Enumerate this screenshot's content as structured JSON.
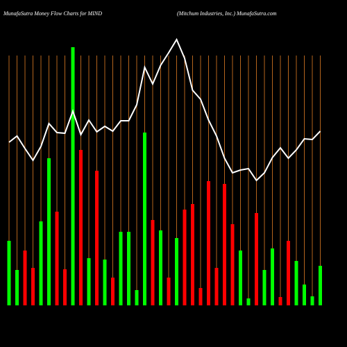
{
  "chart_data": {
    "type": "bar",
    "title": "MunafaSutra  Money Flow  Charts for MIND",
    "subtitle": "(Mitchum Industries, Inc.) MunafaSutra.com",
    "categories": [
      null,
      null,
      null,
      null,
      null,
      null,
      null,
      null,
      null,
      null,
      null,
      null,
      null,
      null,
      null,
      null,
      null,
      null,
      null,
      null,
      null,
      null,
      null,
      null,
      null,
      null,
      null,
      null,
      null,
      null,
      null,
      null,
      null,
      null,
      null,
      null,
      null,
      null,
      null,
      null
    ],
    "values": [
      93,
      51,
      79,
      54,
      121,
      212,
      135,
      52,
      372,
      224,
      68,
      194,
      66,
      40,
      106,
      106,
      22,
      249,
      123,
      108,
      40,
      97,
      138,
      146,
      25,
      179,
      54,
      175,
      117,
      79,
      10,
      133,
      51,
      82,
      12,
      93,
      64,
      30,
      13,
      57
    ],
    "colors": [
      "#00ff00",
      "#00ff00",
      "#ff0000",
      "#ff0000",
      "#00ff00",
      "#00ff00",
      "#ff0000",
      "#ff0000",
      "#00ff00",
      "#ff0000",
      "#00ff00",
      "#ff0000",
      "#00ff00",
      "#ff0000",
      "#00ff00",
      "#00ff00",
      "#00ff00",
      "#00ff00",
      "#ff0000",
      "#00ff00",
      "#ff0000",
      "#00ff00",
      "#ff0000",
      "#ff0000",
      "#ff0000",
      "#ff0000",
      "#ff0000",
      "#ff0000",
      "#ff0000",
      "#00ff00",
      "#00ff00",
      "#ff0000",
      "#00ff00",
      "#00ff00",
      "#ff0000",
      "#ff0000",
      "#00ff00",
      "#00ff00",
      "#00ff00",
      "#00ff00"
    ],
    "line": {
      "color": "#ffffff",
      "values": [
        235,
        244,
        226,
        209,
        229,
        262,
        249,
        248,
        280,
        246,
        267,
        250,
        258,
        251,
        266,
        266,
        289,
        343,
        319,
        346,
        364,
        383,
        356,
        310,
        297,
        267,
        244,
        212,
        191,
        195,
        197,
        180,
        191,
        213,
        227,
        212,
        224,
        240,
        239,
        251
      ]
    },
    "grid_color": "#b5651d",
    "grid": true
  }
}
